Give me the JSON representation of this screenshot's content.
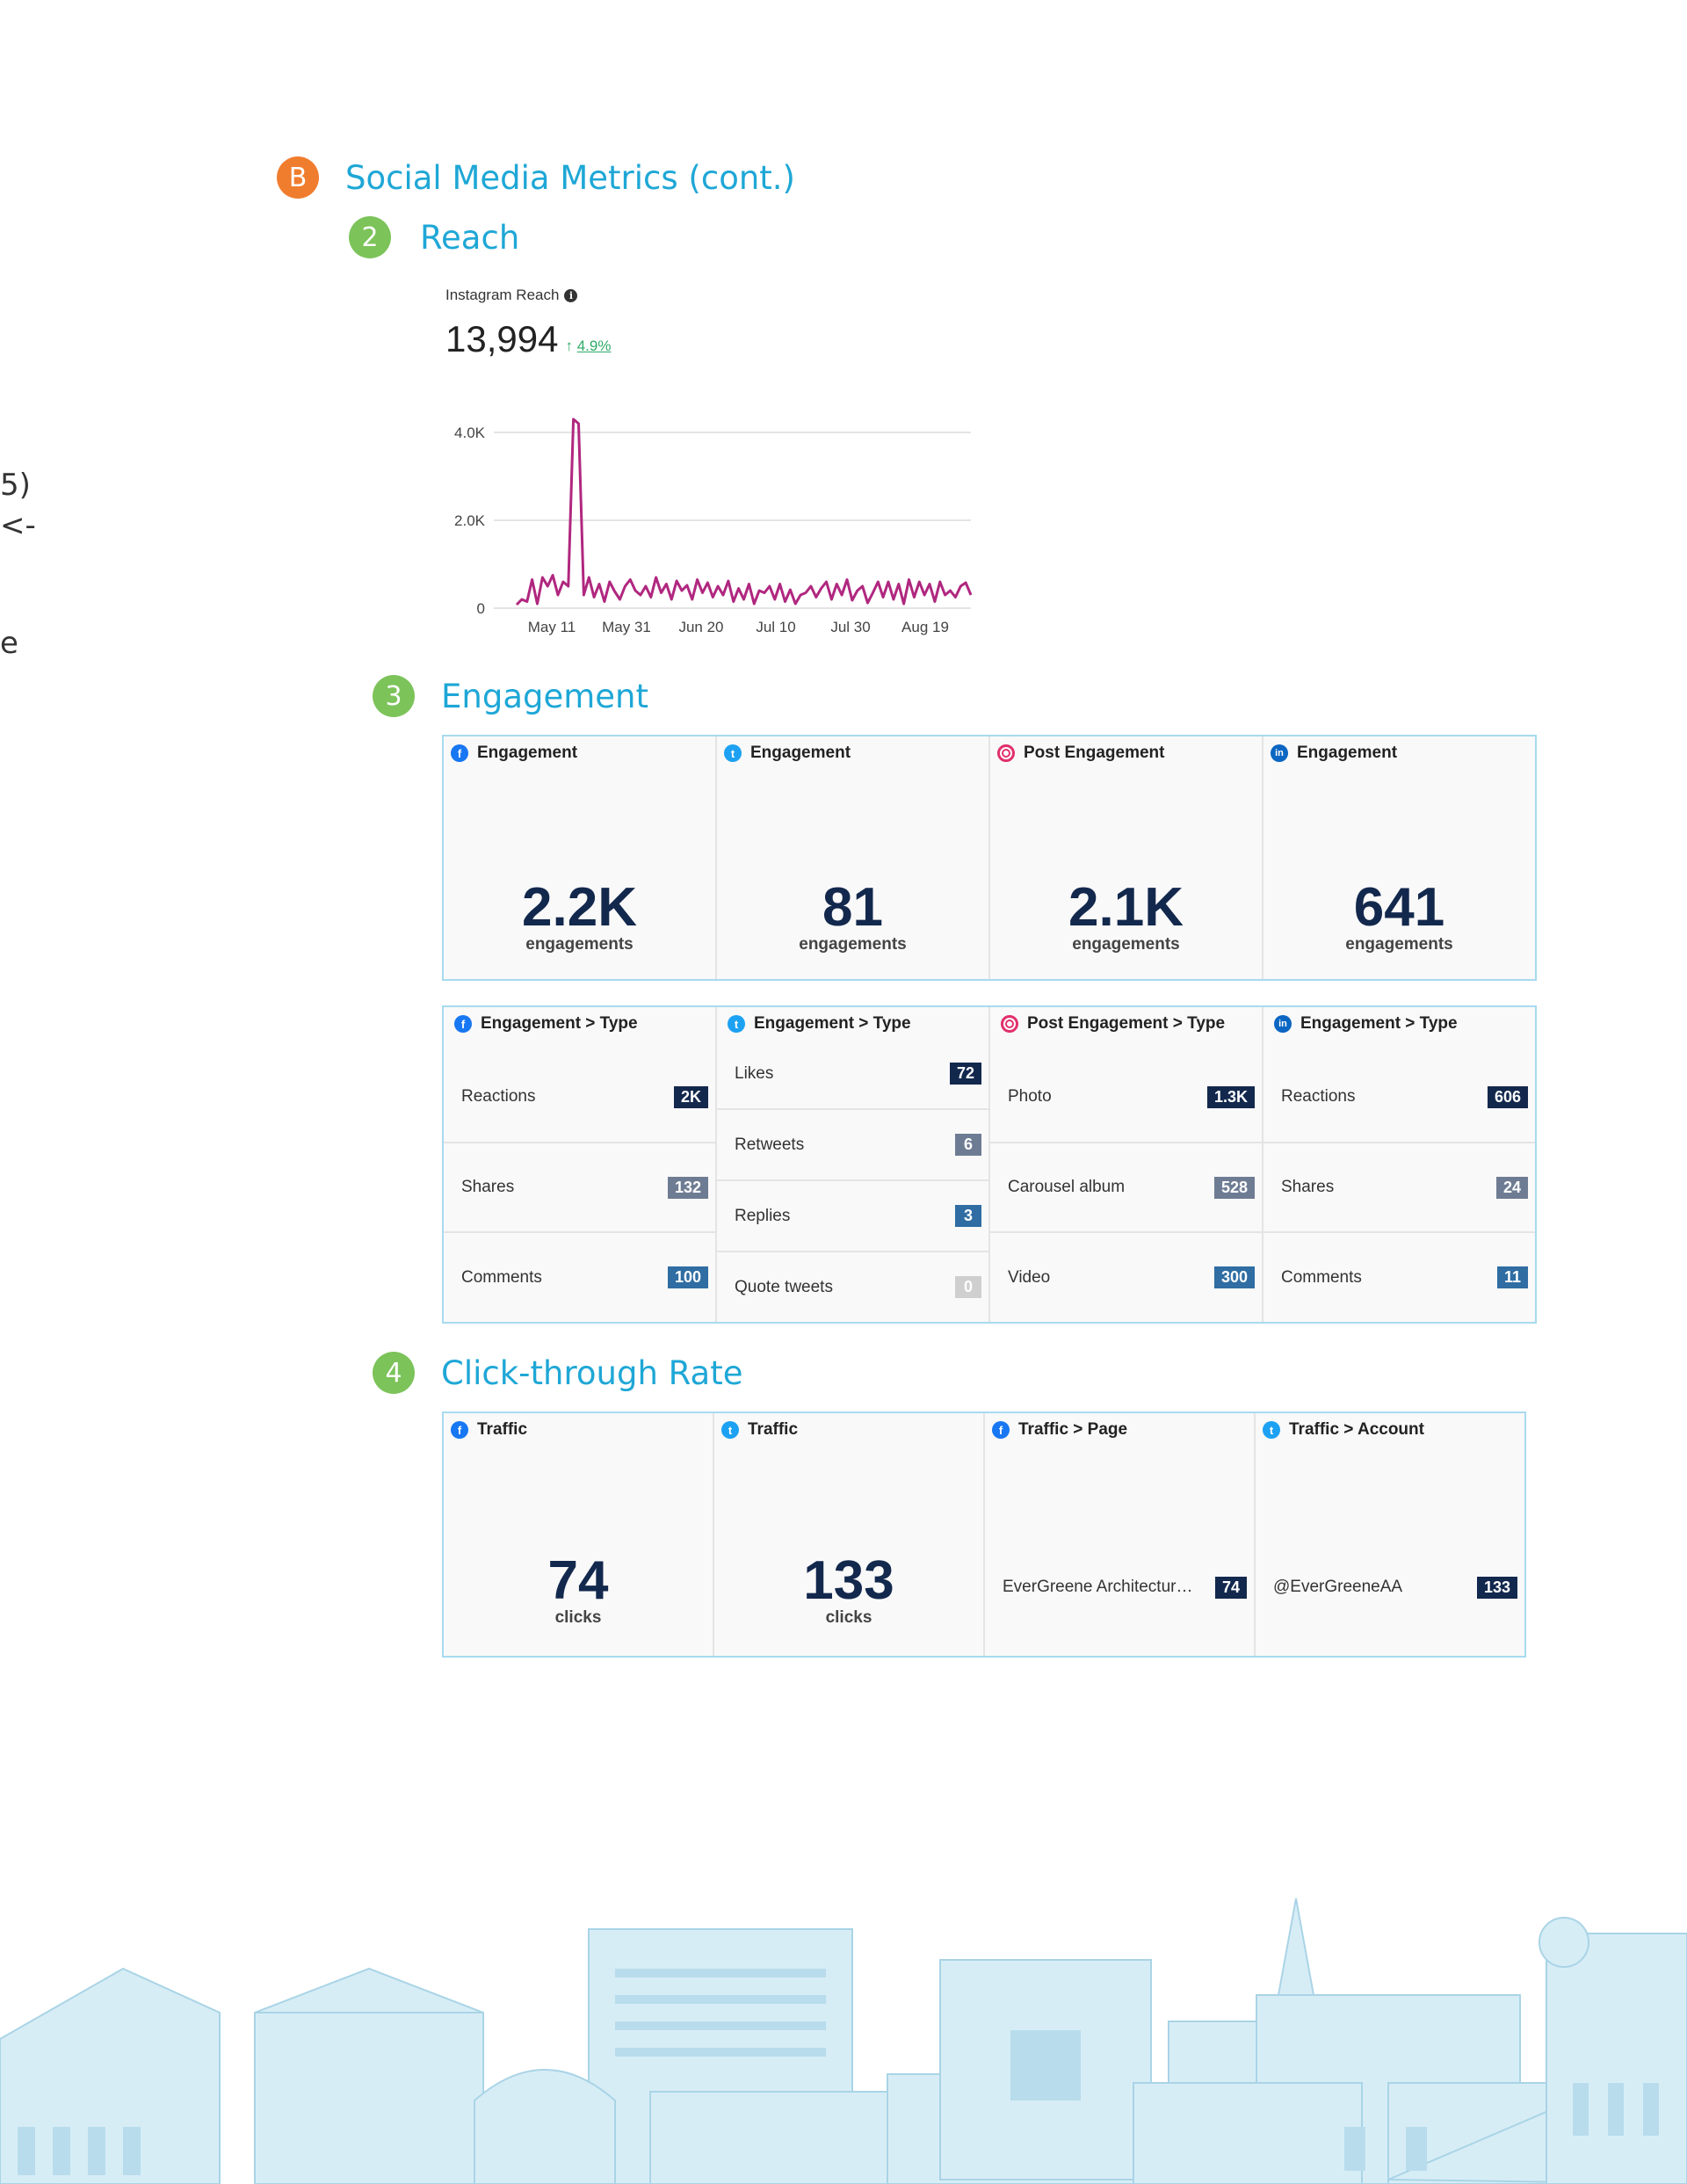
{
  "edge_fragments": [
    "5)",
    "<-",
    "e"
  ],
  "section_b": {
    "badge": "B",
    "title": "Social Media Metrics (cont.)"
  },
  "reach": {
    "badge": "2",
    "title": "Reach",
    "label": "Instagram Reach",
    "info_icon": "info-icon",
    "value": "13,994",
    "change_arrow": "↑",
    "change": "4.9%",
    "change_color": "#2eaa68"
  },
  "chart_data": {
    "type": "line",
    "title": "Instagram Reach",
    "xlabel": "",
    "ylabel": "",
    "yticks": [
      "0",
      "2.0K",
      "4.0K"
    ],
    "ylim": [
      0,
      4200
    ],
    "xticks": [
      "May 11",
      "May 31",
      "Jun 20",
      "Jul 10",
      "Jul 30",
      "Aug 19"
    ],
    "grid": true,
    "series_color": "#b0277f",
    "series": [
      {
        "values": [
          80,
          200,
          150,
          650,
          100,
          700,
          500,
          750,
          300,
          600,
          500,
          4300,
          4200,
          300,
          700,
          250,
          550,
          150,
          600,
          380,
          200,
          500,
          650,
          400,
          300,
          500,
          250,
          700,
          350,
          550,
          200,
          620,
          400,
          520,
          200,
          650,
          350,
          580,
          250,
          500,
          300,
          620,
          150,
          450,
          200,
          550,
          100,
          400,
          350,
          500,
          200,
          550,
          150,
          420,
          100,
          300,
          350,
          500,
          250,
          450,
          600,
          200,
          550,
          300,
          650,
          180,
          400,
          500,
          120,
          350,
          600,
          250,
          600,
          200,
          550,
          100,
          650,
          250,
          600,
          300,
          550,
          150,
          600,
          300,
          400,
          250,
          500,
          580,
          300
        ]
      }
    ]
  },
  "engagement": {
    "badge": "3",
    "title": "Engagement",
    "cards": [
      {
        "icon": "facebook-icon",
        "glyph": "f",
        "net": "fb",
        "title": "Engagement",
        "value": "2.2K",
        "unit": "engagements"
      },
      {
        "icon": "twitter-icon",
        "glyph": "t",
        "net": "tw",
        "title": "Engagement",
        "value": "81",
        "unit": "engagements"
      },
      {
        "icon": "instagram-icon",
        "glyph": "",
        "net": "ig",
        "title": "Post Engagement",
        "value": "2.1K",
        "unit": "engagements"
      },
      {
        "icon": "linkedin-icon",
        "glyph": "in",
        "net": "li",
        "title": "Engagement",
        "value": "641",
        "unit": "engagements"
      }
    ],
    "breakdowns": [
      {
        "icon": "facebook-icon",
        "glyph": "f",
        "net": "fb",
        "title": "Engagement > Type",
        "rows": [
          {
            "label": "Reactions",
            "value": "2K",
            "color": "#13284d"
          },
          {
            "label": "Shares",
            "value": "132",
            "color": "#6e7c93"
          },
          {
            "label": "Comments",
            "value": "100",
            "color": "#2f6da3"
          }
        ]
      },
      {
        "icon": "twitter-icon",
        "glyph": "t",
        "net": "tw",
        "title": "Engagement > Type",
        "rows": [
          {
            "label": "Likes",
            "value": "72",
            "color": "#13284d"
          },
          {
            "label": "Retweets",
            "value": "6",
            "color": "#6e7c93"
          },
          {
            "label": "Replies",
            "value": "3",
            "color": "#2f6da3"
          },
          {
            "label": "Quote tweets",
            "value": "0",
            "color": "#cfcfcf"
          }
        ]
      },
      {
        "icon": "instagram-icon",
        "glyph": "",
        "net": "ig",
        "title": "Post Engagement > Type",
        "rows": [
          {
            "label": "Photo",
            "value": "1.3K",
            "color": "#13284d"
          },
          {
            "label": "Carousel album",
            "value": "528",
            "color": "#6e7c93"
          },
          {
            "label": "Video",
            "value": "300",
            "color": "#2f6da3"
          }
        ]
      },
      {
        "icon": "linkedin-icon",
        "glyph": "in",
        "net": "li",
        "title": "Engagement > Type",
        "rows": [
          {
            "label": "Reactions",
            "value": "606",
            "color": "#13284d"
          },
          {
            "label": "Shares",
            "value": "24",
            "color": "#6e7c93"
          },
          {
            "label": "Comments",
            "value": "11",
            "color": "#2f6da3"
          }
        ]
      }
    ]
  },
  "ctr": {
    "badge": "4",
    "title": "Click-through Rate",
    "cards": [
      {
        "icon": "facebook-icon",
        "glyph": "f",
        "net": "fb",
        "title": "Traffic",
        "value": "74",
        "unit": "clicks"
      },
      {
        "icon": "twitter-icon",
        "glyph": "t",
        "net": "tw",
        "title": "Traffic",
        "value": "133",
        "unit": "clicks"
      }
    ],
    "lists": [
      {
        "icon": "facebook-icon",
        "glyph": "f",
        "net": "fb",
        "title": "Traffic > Page",
        "label": "EverGreene Architectur…",
        "value": "74"
      },
      {
        "icon": "twitter-icon",
        "glyph": "t",
        "net": "tw",
        "title": "Traffic > Account",
        "label": "@EverGreeneAA",
        "value": "133"
      }
    ]
  },
  "colors": {
    "accent": "#1ea7d6",
    "badge_orange": "#f07d2e",
    "badge_green": "#7cc35a",
    "navy": "#13284d",
    "skyline": "#cfe9f3"
  }
}
